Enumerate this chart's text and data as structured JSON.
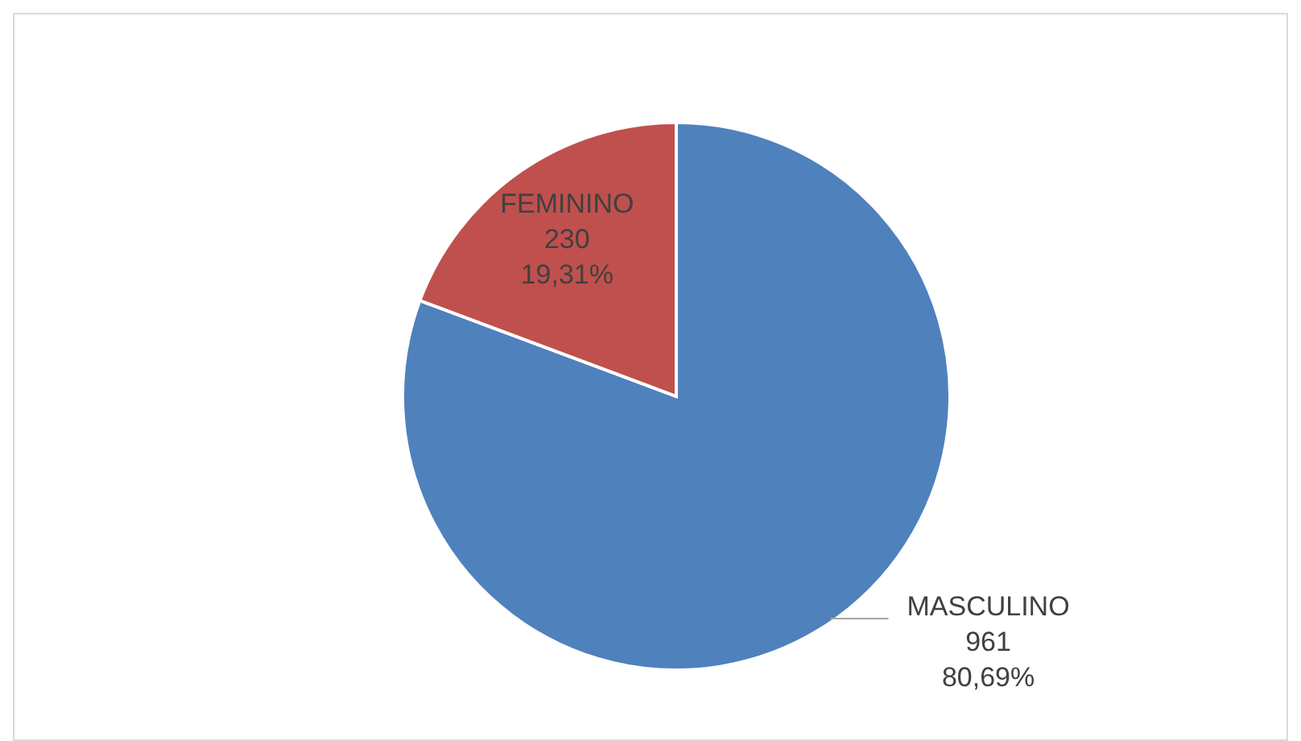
{
  "chart_data": {
    "type": "pie",
    "categories": [
      "MASCULINO",
      "FEMININO"
    ],
    "values": [
      961,
      230
    ],
    "colors": [
      "#4f81bd",
      "#c0504d"
    ],
    "value_labels": [
      "961\n80,69%",
      "230\n19,31%"
    ]
  }
}
